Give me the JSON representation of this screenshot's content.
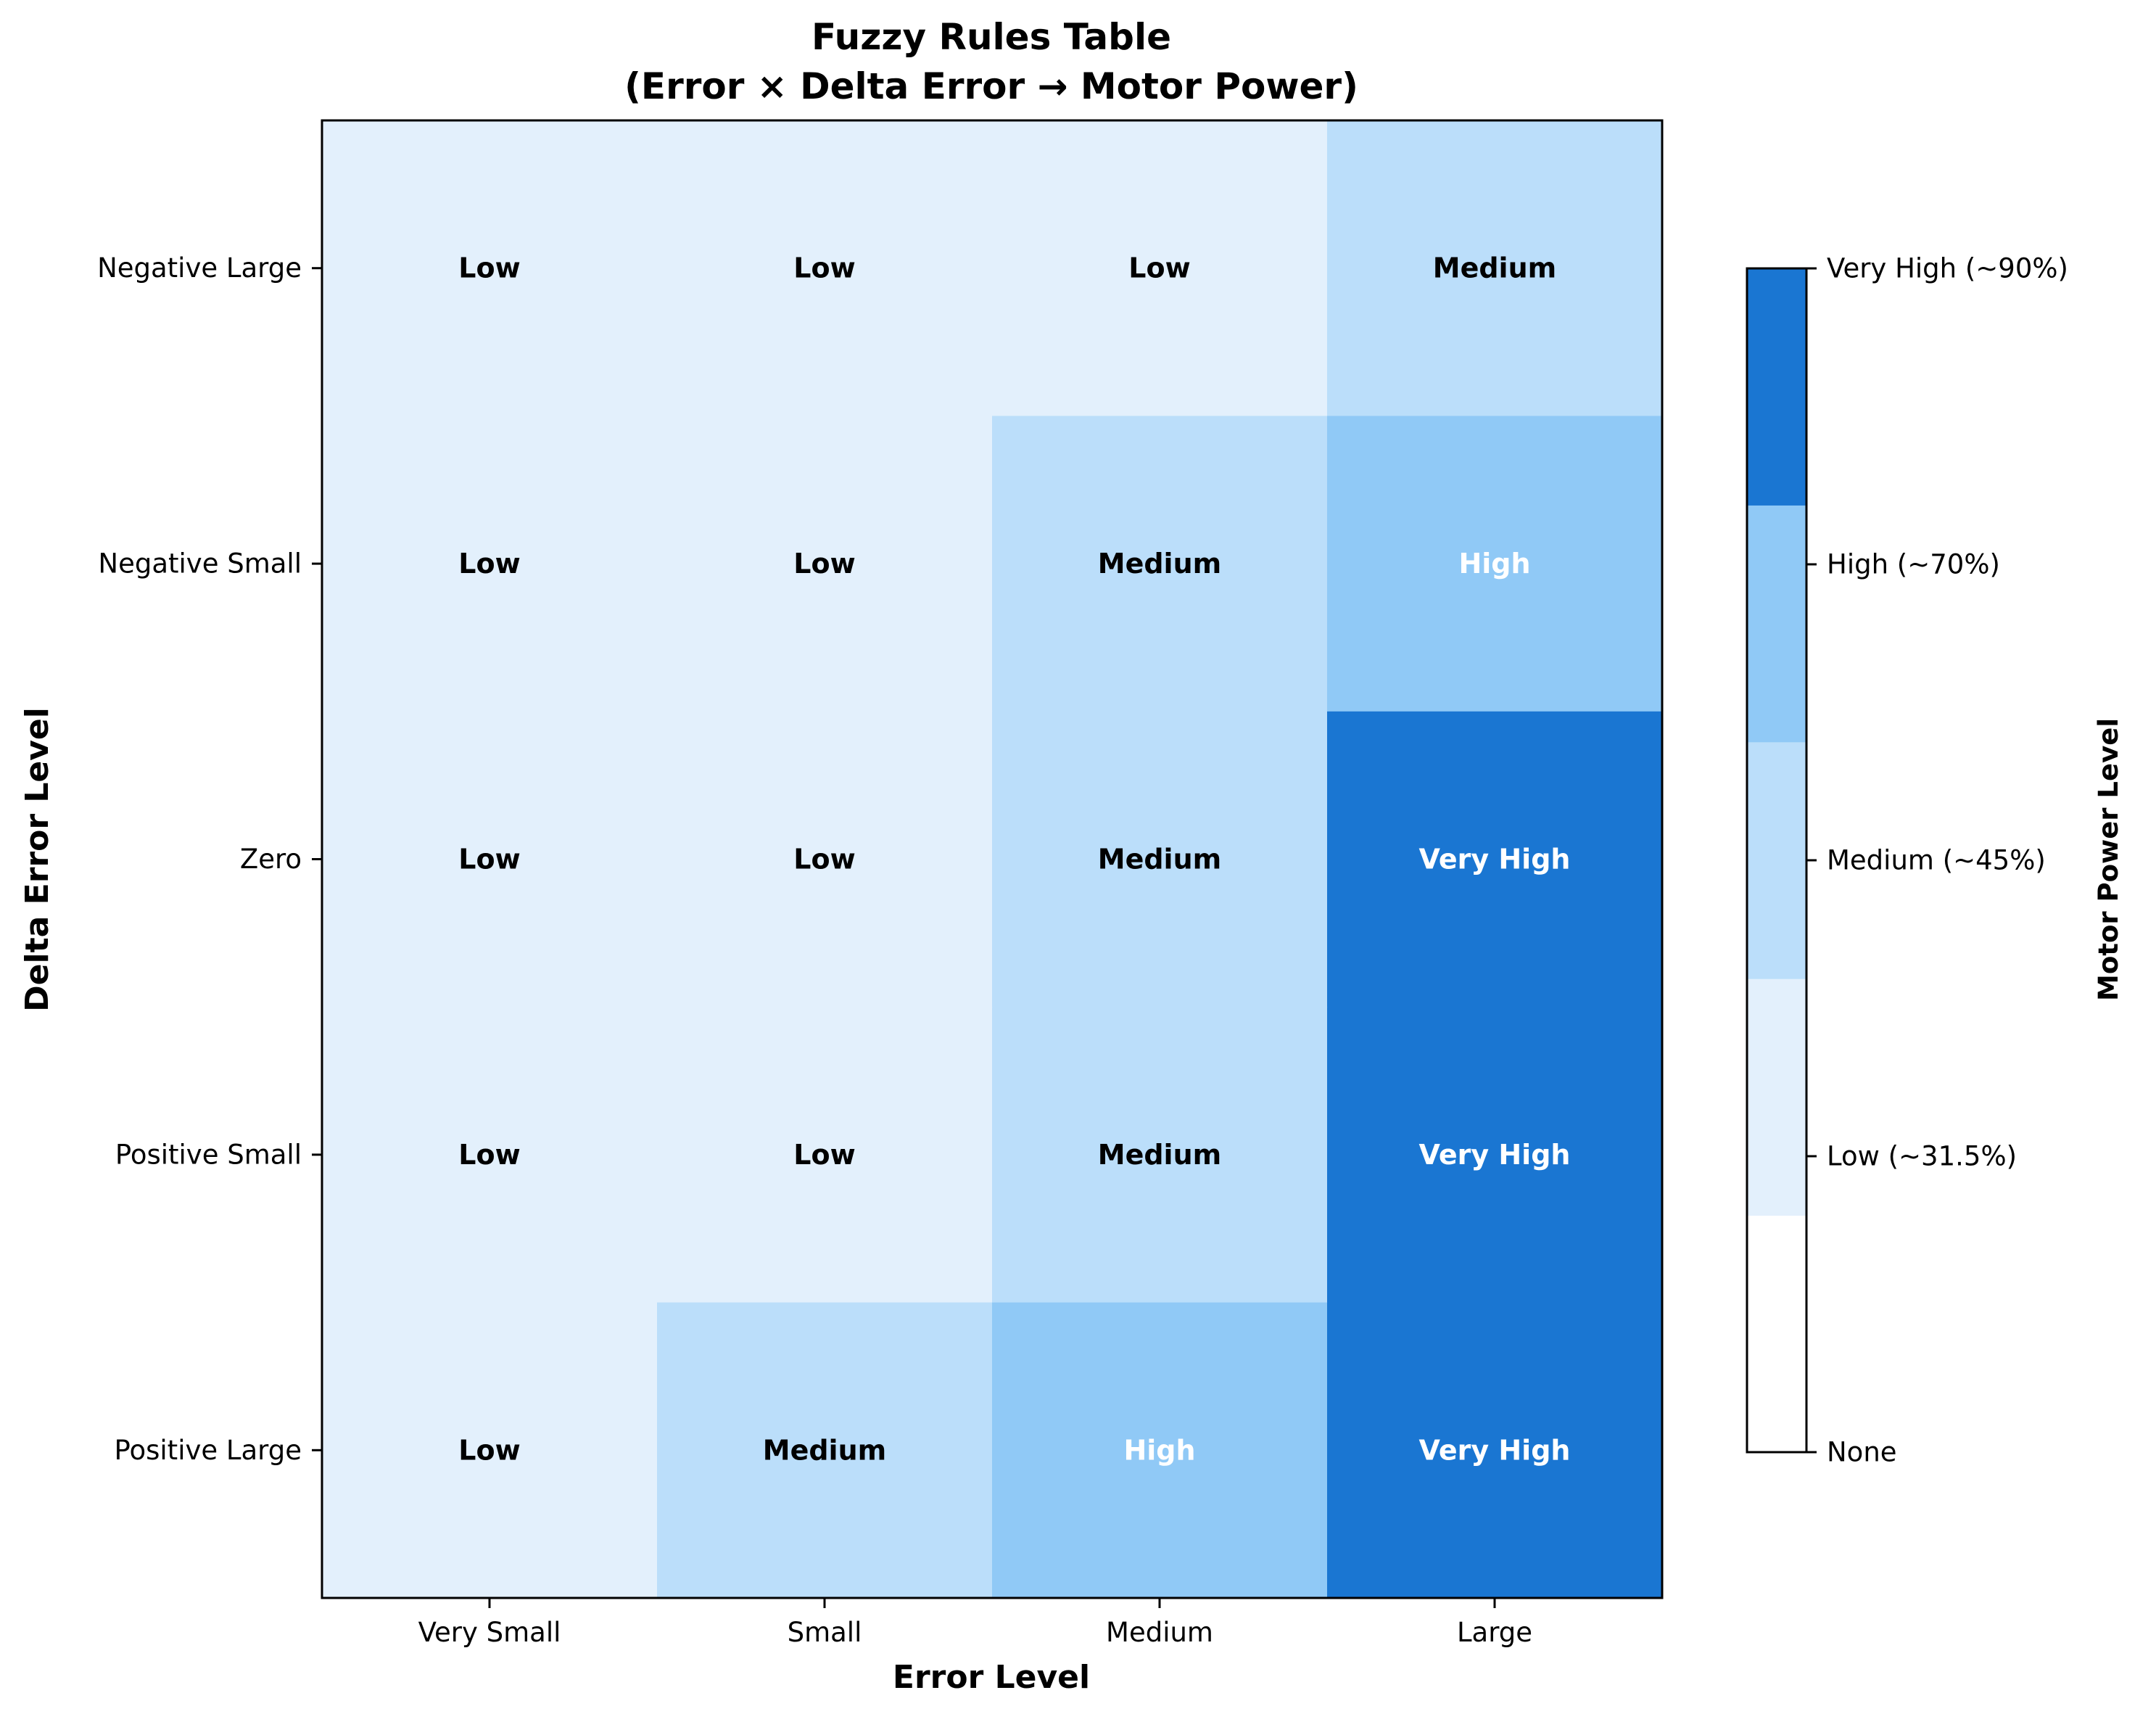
{
  "chart_data": {
    "type": "heatmap",
    "title": "Fuzzy Rules Table",
    "subtitle": "(Error × Delta Error → Motor Power)",
    "xlabel": "Error Level",
    "ylabel": "Delta Error Level",
    "x_categories": [
      "Very Small",
      "Small",
      "Medium",
      "Large"
    ],
    "y_categories": [
      "Negative Large",
      "Negative Small",
      "Zero",
      "Positive Small",
      "Positive Large"
    ],
    "cells": [
      [
        "Low",
        "Low",
        "Low",
        "Medium"
      ],
      [
        "Low",
        "Low",
        "Medium",
        "High"
      ],
      [
        "Low",
        "Low",
        "Medium",
        "Very High"
      ],
      [
        "Low",
        "Low",
        "Medium",
        "Very High"
      ],
      [
        "Low",
        "Medium",
        "High",
        "Very High"
      ]
    ],
    "levels": [
      "None",
      "Low",
      "Medium",
      "High",
      "Very High"
    ],
    "level_colors": {
      "None": "#ffffff",
      "Low": "#e3f0fc",
      "Medium": "#bbdefa",
      "High": "#90c9f6",
      "Very High": "#1a76d2"
    },
    "level_text_colors": {
      "Low": "#000000",
      "Medium": "#000000",
      "High": "#ffffff",
      "Very High": "#ffffff"
    },
    "colorbar": {
      "label": "Motor Power Level",
      "tick_labels": [
        "None",
        "Low (~31.5%)",
        "Medium (~45%)",
        "High (~70%)",
        "Very High (~90%)"
      ]
    }
  }
}
